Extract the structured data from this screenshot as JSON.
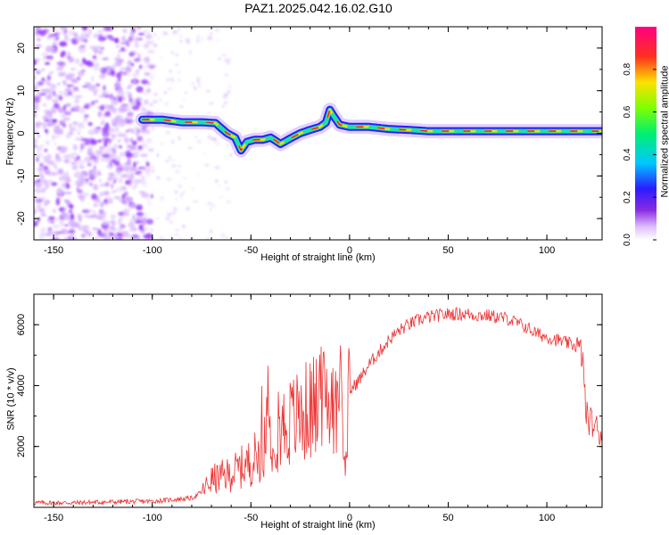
{
  "figure": {
    "title": "PAZ1.2025.042.16.02.G10"
  },
  "colors": {
    "snr_line": "#ee3333",
    "noise": "#9a40ff",
    "noise_light": "#d9b8ff",
    "track_outer": "#2a1bff",
    "track_mid": "#20e0a0",
    "track_core": "#e82030"
  },
  "chart_data": [
    {
      "type": "heatmap",
      "title": "PAZ1.2025.042.16.02.G10",
      "xlabel": "Height of straight line (km)",
      "ylabel": "Frequency (Hz)",
      "xlim": [
        -160,
        128
      ],
      "ylim": [
        -25,
        25
      ],
      "x_ticks": [
        -150,
        -100,
        -50,
        0,
        50,
        100
      ],
      "y_ticks": [
        -20,
        -10,
        0,
        10,
        20
      ],
      "colorbar": {
        "label": "Normalized spectral amplitude",
        "range": [
          0,
          1
        ],
        "ticks": [
          "0.0",
          "0.2",
          "0.4",
          "0.6",
          "0.8"
        ],
        "colormap": "rainbow (white-violet-blue-cyan-green-yellow-red-magenta)"
      },
      "ridge": {
        "x": [
          -105,
          -95,
          -85,
          -75,
          -68,
          -62,
          -58,
          -55,
          -52,
          -48,
          -44,
          -40,
          -35,
          -30,
          -25,
          -20,
          -15,
          -12,
          -10,
          -8,
          -5,
          0,
          10,
          20,
          30,
          40,
          50,
          60,
          70,
          80,
          90,
          100,
          110,
          120,
          128
        ],
        "y": [
          3.2,
          3.2,
          2.6,
          2.6,
          2.4,
          0.0,
          -1.0,
          -4.0,
          -2.0,
          -1.5,
          -1.5,
          -1.0,
          -2.5,
          -1.2,
          0.0,
          0.8,
          1.5,
          2.5,
          5.5,
          4.0,
          2.0,
          1.5,
          1.5,
          1.0,
          0.8,
          0.5,
          0.5,
          0.5,
          0.5,
          0.5,
          0.5,
          0.5,
          0.5,
          0.5,
          0.5
        ]
      }
    },
    {
      "type": "line",
      "xlabel": "Height of straight line (km)",
      "ylabel": "SNR (10 * v/v)",
      "xlim": [
        -160,
        128
      ],
      "ylim": [
        0,
        7000
      ],
      "x_ticks": [
        -150,
        -100,
        -50,
        0,
        50,
        100
      ],
      "y_ticks": [
        2000,
        4000,
        6000
      ],
      "series": [
        {
          "x": [
            -160,
            -140,
            -120,
            -100,
            -90,
            -80,
            -75,
            -70,
            -65,
            -60,
            -55,
            -50,
            -45,
            -42,
            -40,
            -35,
            -30,
            -25,
            -20,
            -15,
            -10,
            -5,
            -2,
            0,
            5,
            10,
            15,
            20,
            25,
            30,
            35,
            40,
            45,
            50,
            55,
            60,
            65,
            70,
            75,
            80,
            85,
            90,
            95,
            100,
            105,
            110,
            115,
            118,
            120,
            125,
            128
          ],
          "y": [
            150,
            150,
            180,
            200,
            250,
            300,
            500,
            900,
            1000,
            1100,
            1300,
            1500,
            1800,
            2500,
            2400,
            2600,
            2800,
            3000,
            3200,
            3400,
            3600,
            3800,
            2000,
            3800,
            4200,
            4700,
            5100,
            5500,
            5800,
            6000,
            6150,
            6250,
            6300,
            6350,
            6350,
            6350,
            6300,
            6300,
            6250,
            6200,
            6050,
            5900,
            5700,
            5600,
            5500,
            5400,
            5300,
            5000,
            3000,
            2600,
            2400
          ]
        }
      ]
    }
  ]
}
